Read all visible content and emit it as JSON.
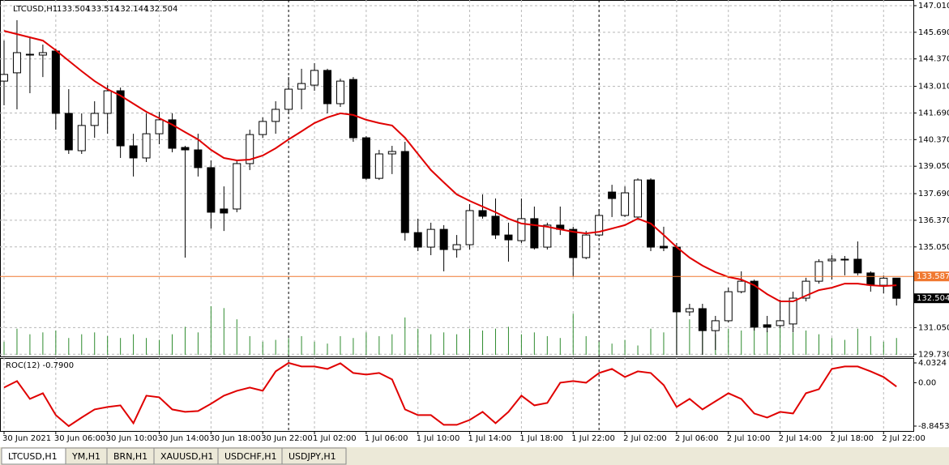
{
  "chart_data": [
    {
      "type": "candlestick",
      "title": "LTCUSD,H1",
      "categories": [
        "30 Jun 2021",
        null,
        null,
        null,
        "30 Jun 06:00",
        null,
        null,
        null,
        "30 Jun 10:00",
        null,
        null,
        null,
        "30 Jun 14:00",
        null,
        null,
        null,
        "30 Jun 18:00",
        null,
        null,
        null,
        "30 Jun 22:00",
        null,
        null,
        null,
        "1 Jul 02:00",
        null,
        null,
        null,
        "1 Jul 06:00",
        null,
        null,
        null,
        "1 Jul 10:00",
        null,
        null,
        null,
        "1 Jul 14:00",
        null,
        null,
        null,
        "1 Jul 18:00",
        null,
        null,
        null,
        "1 Jul 22:00",
        null,
        null,
        null,
        "2 Jul 02:00",
        null,
        null,
        null,
        "2 Jul 06:00",
        null,
        null,
        null,
        "2 Jul 10:00",
        null,
        null,
        null,
        "2 Jul 14:00",
        null,
        null,
        null,
        "2 Jul 18:00",
        null,
        null,
        null,
        "2 Jul 22:00",
        null
      ],
      "open": [
        143.27,
        143.68,
        144.6,
        144.56,
        144.76,
        141.67,
        139.82,
        141.07,
        141.67,
        142.79,
        140.06,
        139.46,
        140.66,
        141.35,
        139.98,
        139.86,
        138.98,
        136.93,
        136.93,
        139.18,
        140.62,
        141.27,
        141.87,
        142.87,
        143.07,
        143.8,
        142.15,
        143.35,
        140.46,
        138.45,
        139.66,
        139.78,
        135.76,
        135.04,
        135.92,
        134.92,
        135.16,
        136.85,
        136.57,
        135.64,
        135.36,
        136.45,
        135.04,
        136.13,
        135.92,
        134.52,
        135.64,
        137.77,
        136.61,
        136.53,
        138.37,
        135.08,
        135.04,
        131.83,
        131.99,
        130.9,
        131.39,
        132.83,
        133.35,
        131.19,
        131.15,
        131.23,
        132.51,
        133.35,
        134.36,
        134.4,
        134.44,
        133.76,
        133.15,
        133.504
      ],
      "high": [
        145.28,
        146.29,
        145.48,
        145.08,
        144.88,
        142.87,
        141.67,
        142.27,
        143.07,
        142.95,
        140.66,
        141.67,
        141.75,
        141.67,
        140.06,
        140.66,
        139.34,
        138.05,
        139.34,
        140.86,
        141.47,
        142.27,
        143.47,
        143.88,
        144.16,
        143.88,
        143.39,
        143.47,
        140.54,
        139.86,
        140.06,
        140.26,
        136.45,
        136.25,
        136.13,
        135.64,
        137.17,
        137.65,
        137.45,
        136.25,
        137.45,
        137.05,
        136.25,
        137.05,
        136.05,
        135.84,
        136.93,
        138.13,
        138.05,
        138.45,
        138.45,
        136.05,
        135.24,
        132.23,
        132.23,
        131.63,
        133.03,
        133.84,
        133.43,
        131.63,
        132.43,
        132.83,
        133.52,
        134.44,
        134.64,
        134.6,
        135.32,
        133.84,
        133.64,
        133.514
      ],
      "low": [
        142.07,
        141.87,
        142.67,
        143.47,
        140.86,
        139.66,
        139.66,
        140.46,
        140.66,
        139.46,
        138.54,
        139.26,
        140.14,
        139.74,
        134.52,
        138.54,
        135.96,
        135.84,
        136.77,
        138.86,
        140.46,
        140.66,
        141.67,
        141.87,
        142.79,
        141.67,
        141.99,
        140.26,
        138.37,
        138.37,
        138.66,
        135.36,
        134.84,
        134.64,
        133.84,
        134.52,
        134.92,
        136.45,
        135.44,
        134.32,
        135.24,
        134.92,
        134.92,
        135.64,
        133.56,
        134.44,
        135.56,
        136.53,
        136.53,
        136.45,
        134.84,
        134.84,
        129.7,
        131.63,
        129.7,
        129.94,
        131.31,
        132.75,
        130.9,
        130.82,
        131.03,
        130.82,
        132.35,
        133.23,
        133.43,
        133.64,
        133.64,
        132.83,
        132.75,
        132.144
      ],
      "close": [
        143.6,
        144.68,
        144.56,
        144.68,
        141.67,
        139.86,
        141.07,
        141.67,
        142.79,
        140.06,
        139.46,
        140.66,
        141.35,
        139.94,
        139.86,
        138.98,
        136.77,
        136.73,
        139.18,
        140.62,
        141.27,
        141.87,
        142.87,
        143.15,
        143.8,
        142.15,
        143.27,
        140.46,
        138.45,
        139.66,
        139.78,
        135.76,
        135.04,
        135.92,
        134.92,
        135.16,
        136.85,
        136.57,
        135.64,
        135.4,
        136.45,
        135.0,
        136.13,
        135.92,
        134.52,
        135.64,
        136.61,
        137.45,
        137.73,
        138.37,
        135.04,
        135.0,
        131.83,
        131.99,
        130.9,
        131.39,
        132.83,
        133.35,
        131.07,
        131.07,
        131.39,
        132.51,
        133.35,
        134.32,
        134.44,
        134.44,
        133.76,
        133.15,
        133.5,
        132.504
      ],
      "ma": {
        "color": "#e00000",
        "values": [
          145.76,
          145.6,
          145.44,
          145.28,
          144.8,
          144.28,
          143.76,
          143.27,
          142.87,
          142.55,
          142.15,
          141.75,
          141.43,
          141.11,
          140.74,
          140.38,
          139.86,
          139.46,
          139.34,
          139.38,
          139.58,
          139.94,
          140.38,
          140.78,
          141.19,
          141.47,
          141.67,
          141.59,
          141.35,
          141.19,
          141.07,
          140.46,
          139.66,
          138.86,
          138.25,
          137.65,
          137.33,
          137.05,
          136.77,
          136.45,
          136.21,
          136.13,
          136.05,
          135.92,
          135.8,
          135.72,
          135.8,
          135.96,
          136.13,
          136.45,
          136.21,
          135.64,
          135.04,
          134.52,
          134.12,
          133.8,
          133.56,
          133.43,
          133.15,
          132.71,
          132.35,
          132.35,
          132.63,
          132.91,
          133.03,
          133.23,
          133.23,
          133.15,
          133.11,
          133.15
        ]
      },
      "volume": {
        "color": "#2e8b2e",
        "values": [
          14,
          28,
          22,
          24,
          26,
          18,
          22,
          24,
          20,
          18,
          22,
          18,
          16,
          22,
          30,
          24,
          52,
          50,
          38,
          20,
          14,
          16,
          18,
          20,
          14,
          12,
          20,
          18,
          24,
          20,
          22,
          40,
          28,
          22,
          24,
          22,
          28,
          26,
          28,
          30,
          22,
          24,
          20,
          18,
          44,
          20,
          14,
          12,
          16,
          10,
          28,
          24,
          46,
          38,
          30,
          22,
          28,
          26,
          34,
          26,
          30,
          24,
          26,
          22,
          18,
          16,
          28,
          20,
          14,
          18
        ]
      },
      "up_color": "#ffffff",
      "down_color": "#000000",
      "price_line": {
        "value": 133.587,
        "color": "#f07830"
      },
      "ylim": [
        129.62,
        147.29
      ],
      "yticks": [
        {
          "value": 147.01,
          "label": "147.010"
        },
        {
          "value": 145.69,
          "label": "145.690"
        },
        {
          "value": 144.37,
          "label": "144.370"
        },
        {
          "value": 143.01,
          "label": "143.010"
        },
        {
          "value": 141.69,
          "label": "141.690"
        },
        {
          "value": 140.37,
          "label": "140.370"
        },
        {
          "value": 139.05,
          "label": "139.050"
        },
        {
          "value": 137.69,
          "label": "137.690"
        },
        {
          "value": 136.37,
          "label": "136.370"
        },
        {
          "value": 135.05,
          "label": "135.050"
        },
        {
          "value": 131.05,
          "label": "131.050"
        },
        {
          "value": 129.73,
          "label": "129.730"
        }
      ],
      "grid": true
    },
    {
      "type": "line",
      "title": "ROC(12) -0.7900",
      "color": "#e00000",
      "values": [
        -0.99,
        0.33,
        -3.3,
        -2.15,
        -6.6,
        -8.85,
        -7.1,
        -5.45,
        -4.95,
        -4.62,
        -8.25,
        -2.64,
        -2.97,
        -5.45,
        -5.94,
        -5.78,
        -4.29,
        -2.64,
        -1.65,
        -0.99,
        -1.65,
        2.31,
        4.03,
        3.3,
        3.3,
        2.81,
        3.96,
        1.98,
        1.65,
        1.98,
        0.66,
        -5.45,
        -6.6,
        -6.6,
        -8.58,
        -8.58,
        -7.59,
        -5.94,
        -8.25,
        -5.94,
        -2.64,
        -4.62,
        -4.13,
        0.0,
        0.33,
        0.0,
        1.98,
        2.81,
        1.16,
        2.31,
        1.98,
        -0.5,
        -4.95,
        -3.3,
        -5.45,
        -3.8,
        -2.15,
        -3.3,
        -6.27,
        -7.1,
        -5.94,
        -6.27,
        -2.15,
        -1.32,
        2.81,
        3.3,
        3.3,
        2.31,
        1.16,
        -0.79
      ],
      "ylim": [
        -9.84,
        5.02
      ],
      "yticks": [
        4.0324,
        {
          "value": 0,
          "label": "0.00"
        },
        -8.8453
      ]
    }
  ],
  "tabs": [
    "LTCUSD,H1",
    "YM,H1",
    "BRN,H1",
    "XAUUSD,H1",
    "USDCHF,H1",
    "USDJPY,H1"
  ]
}
